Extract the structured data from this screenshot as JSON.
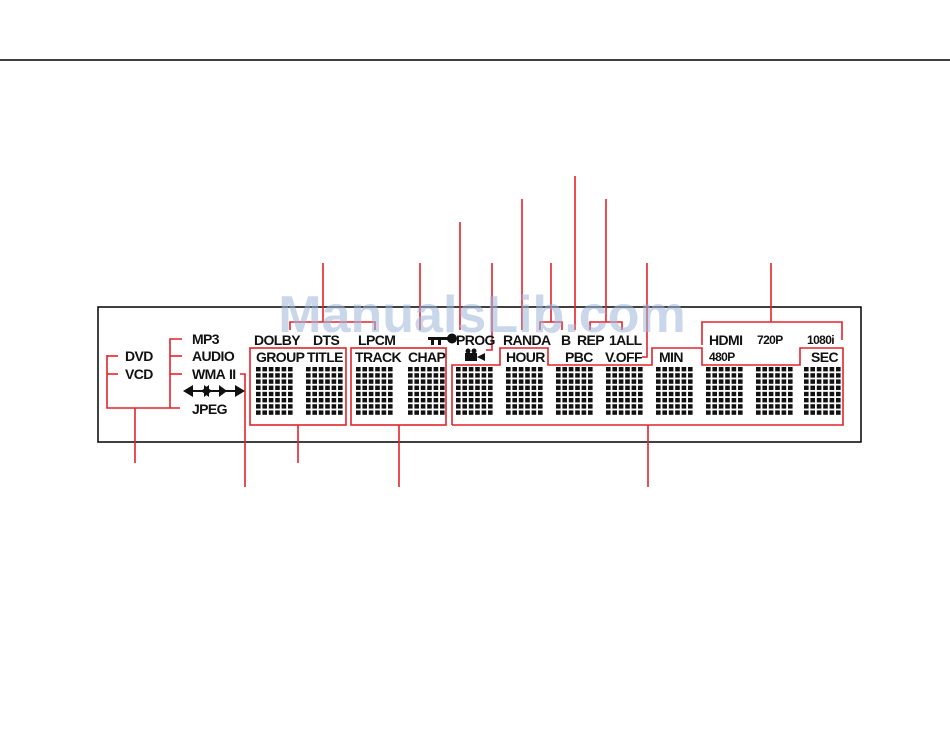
{
  "watermark": "ManualsLib.com",
  "indicators": [
    "DVD",
    "VCD",
    "MP3",
    "AUDIO",
    "WMA",
    "II",
    "JPEG",
    "DOLBY",
    "DTS",
    "LPCM",
    "PROG",
    "RANDA",
    "B",
    "REP",
    "1ALL",
    "GROUP",
    "TITLE",
    "TRACK",
    "CHAP",
    "HOUR",
    "PBC",
    "V.OFF",
    "MIN",
    "SEC",
    "HDMI",
    "720P",
    "1080i",
    "480P"
  ]
}
